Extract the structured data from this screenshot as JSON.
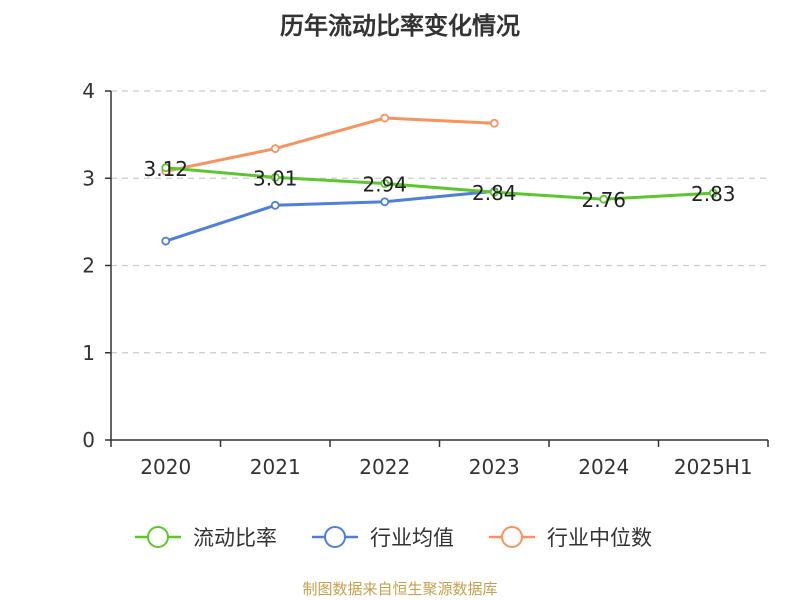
{
  "chart_data": {
    "type": "line",
    "title": "历年流动比率变化情况",
    "categories": [
      "2020",
      "2021",
      "2022",
      "2023",
      "2024",
      "2025H1"
    ],
    "yticks": [
      "0",
      "1",
      "2",
      "3",
      "4"
    ],
    "ylim": [
      0,
      4
    ],
    "grid": true,
    "legend_position": "bottom",
    "series": [
      {
        "name": "流动比率",
        "color": "#5cc72c",
        "values": [
          3.12,
          3.01,
          2.94,
          2.84,
          2.76,
          2.83
        ],
        "labels": [
          "3.12",
          "3.01",
          "2.94",
          "2.84",
          "2.76",
          "2.83"
        ]
      },
      {
        "name": "行业均值",
        "color": "#4f80d8",
        "values": [
          2.28,
          2.69,
          2.73,
          2.85,
          null,
          null
        ]
      },
      {
        "name": "行业中位数",
        "color": "#f7935f",
        "values": [
          3.08,
          3.34,
          3.69,
          3.63,
          null,
          null
        ]
      }
    ]
  },
  "footer": {
    "source": "制图数据来自恒生聚源数据库"
  }
}
